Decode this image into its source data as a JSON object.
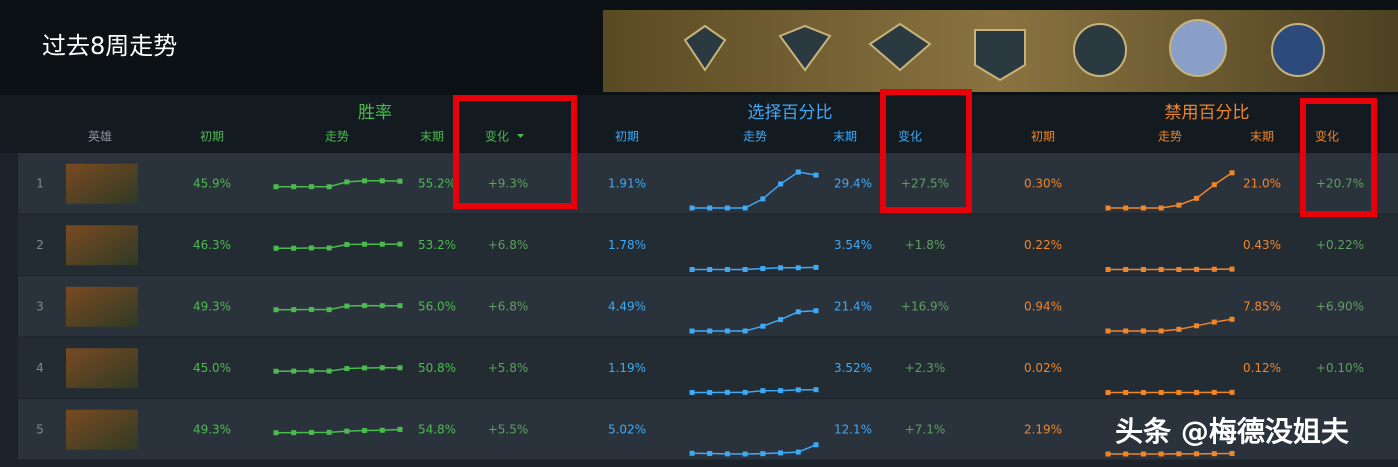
{
  "title": "过去8周走势",
  "hero_header": "英雄",
  "groups": [
    {
      "name": "胜率",
      "headers": [
        "初期",
        "走势",
        "末期",
        "变化"
      ]
    },
    {
      "name": "选择百分比",
      "headers": [
        "初期",
        "走势",
        "末期",
        "变化"
      ]
    },
    {
      "name": "禁用百分比",
      "headers": [
        "初期",
        "走势",
        "末期",
        "变化"
      ]
    }
  ],
  "rows": [
    {
      "rank": 1,
      "stats": [
        {
          "start": "45.9%",
          "trend": [
            45.9,
            46,
            46,
            45.9,
            54,
            55.8,
            55.8,
            55.2
          ],
          "end": "55.2%",
          "change": "+9.3%"
        },
        {
          "start": "1.91%",
          "trend": [
            1.91,
            1.9,
            1.9,
            1.91,
            9.5,
            22,
            32,
            29.4
          ],
          "end": "29.4%",
          "change": "+27.5%"
        },
        {
          "start": "0.30%",
          "trend": [
            0.3,
            0.3,
            0.3,
            0.3,
            2,
            6,
            14,
            21
          ],
          "end": "21.0%",
          "change": "+20.7%"
        }
      ]
    },
    {
      "rank": 2,
      "stats": [
        {
          "start": "46.3%",
          "trend": [
            46.3,
            46.3,
            46.8,
            46.8,
            52.5,
            53,
            53,
            53.2
          ],
          "end": "53.2%",
          "change": "+6.8%"
        },
        {
          "start": "1.78%",
          "trend": [
            1.78,
            1.8,
            1.8,
            1.8,
            2.6,
            3.2,
            3.2,
            3.54
          ],
          "end": "3.54%",
          "change": "+1.8%"
        },
        {
          "start": "0.22%",
          "trend": [
            0.22,
            0.22,
            0.22,
            0.22,
            0.22,
            0.3,
            0.35,
            0.43
          ],
          "end": "0.43%",
          "change": "+0.22%"
        }
      ]
    },
    {
      "rank": 3,
      "stats": [
        {
          "start": "49.3%",
          "trend": [
            49.3,
            49.5,
            49.8,
            49.5,
            55.5,
            56.2,
            56,
            56
          ],
          "end": "56.0%",
          "change": "+6.8%"
        },
        {
          "start": "4.49%",
          "trend": [
            4.49,
            4.5,
            4.5,
            4.5,
            8.5,
            14,
            20.5,
            21.4
          ],
          "end": "21.4%",
          "change": "+16.9%"
        },
        {
          "start": "0.94%",
          "trend": [
            0.94,
            0.95,
            0.95,
            0.95,
            1.9,
            4,
            6.2,
            7.85
          ],
          "end": "7.85%",
          "change": "+6.90%"
        }
      ]
    },
    {
      "rank": 4,
      "stats": [
        {
          "start": "45.0%",
          "trend": [
            45,
            45.2,
            45.5,
            45.3,
            49.5,
            50.5,
            50.8,
            50.8
          ],
          "end": "50.8%",
          "change": "+5.8%"
        },
        {
          "start": "1.19%",
          "trend": [
            1.19,
            1.2,
            1.3,
            1.3,
            2.7,
            2.8,
            3.4,
            3.52
          ],
          "end": "3.52%",
          "change": "+2.3%"
        },
        {
          "start": "0.02%",
          "trend": [
            0.02,
            0.02,
            0.02,
            0.02,
            0.03,
            0.05,
            0.1,
            0.12
          ],
          "end": "0.12%",
          "change": "+0.10%"
        }
      ]
    },
    {
      "rank": 5,
      "stats": [
        {
          "start": "49.3%",
          "trend": [
            49.3,
            49.5,
            49.8,
            50,
            52,
            53,
            53.5,
            54.8
          ],
          "end": "54.8%",
          "change": "+5.5%"
        },
        {
          "start": "5.02%",
          "trend": [
            5.02,
            4.8,
            4.5,
            4.4,
            4.7,
            5.3,
            6,
            12.1
          ],
          "end": "12.1%",
          "change": "+7.1%"
        },
        {
          "start": "2.19%",
          "trend": [
            2.19,
            2.2,
            2.2,
            2.2,
            2.3,
            2.3,
            2.4,
            2.5
          ]
        }
      ]
    }
  ],
  "watermark": "头条 @梅德没姐夫"
}
